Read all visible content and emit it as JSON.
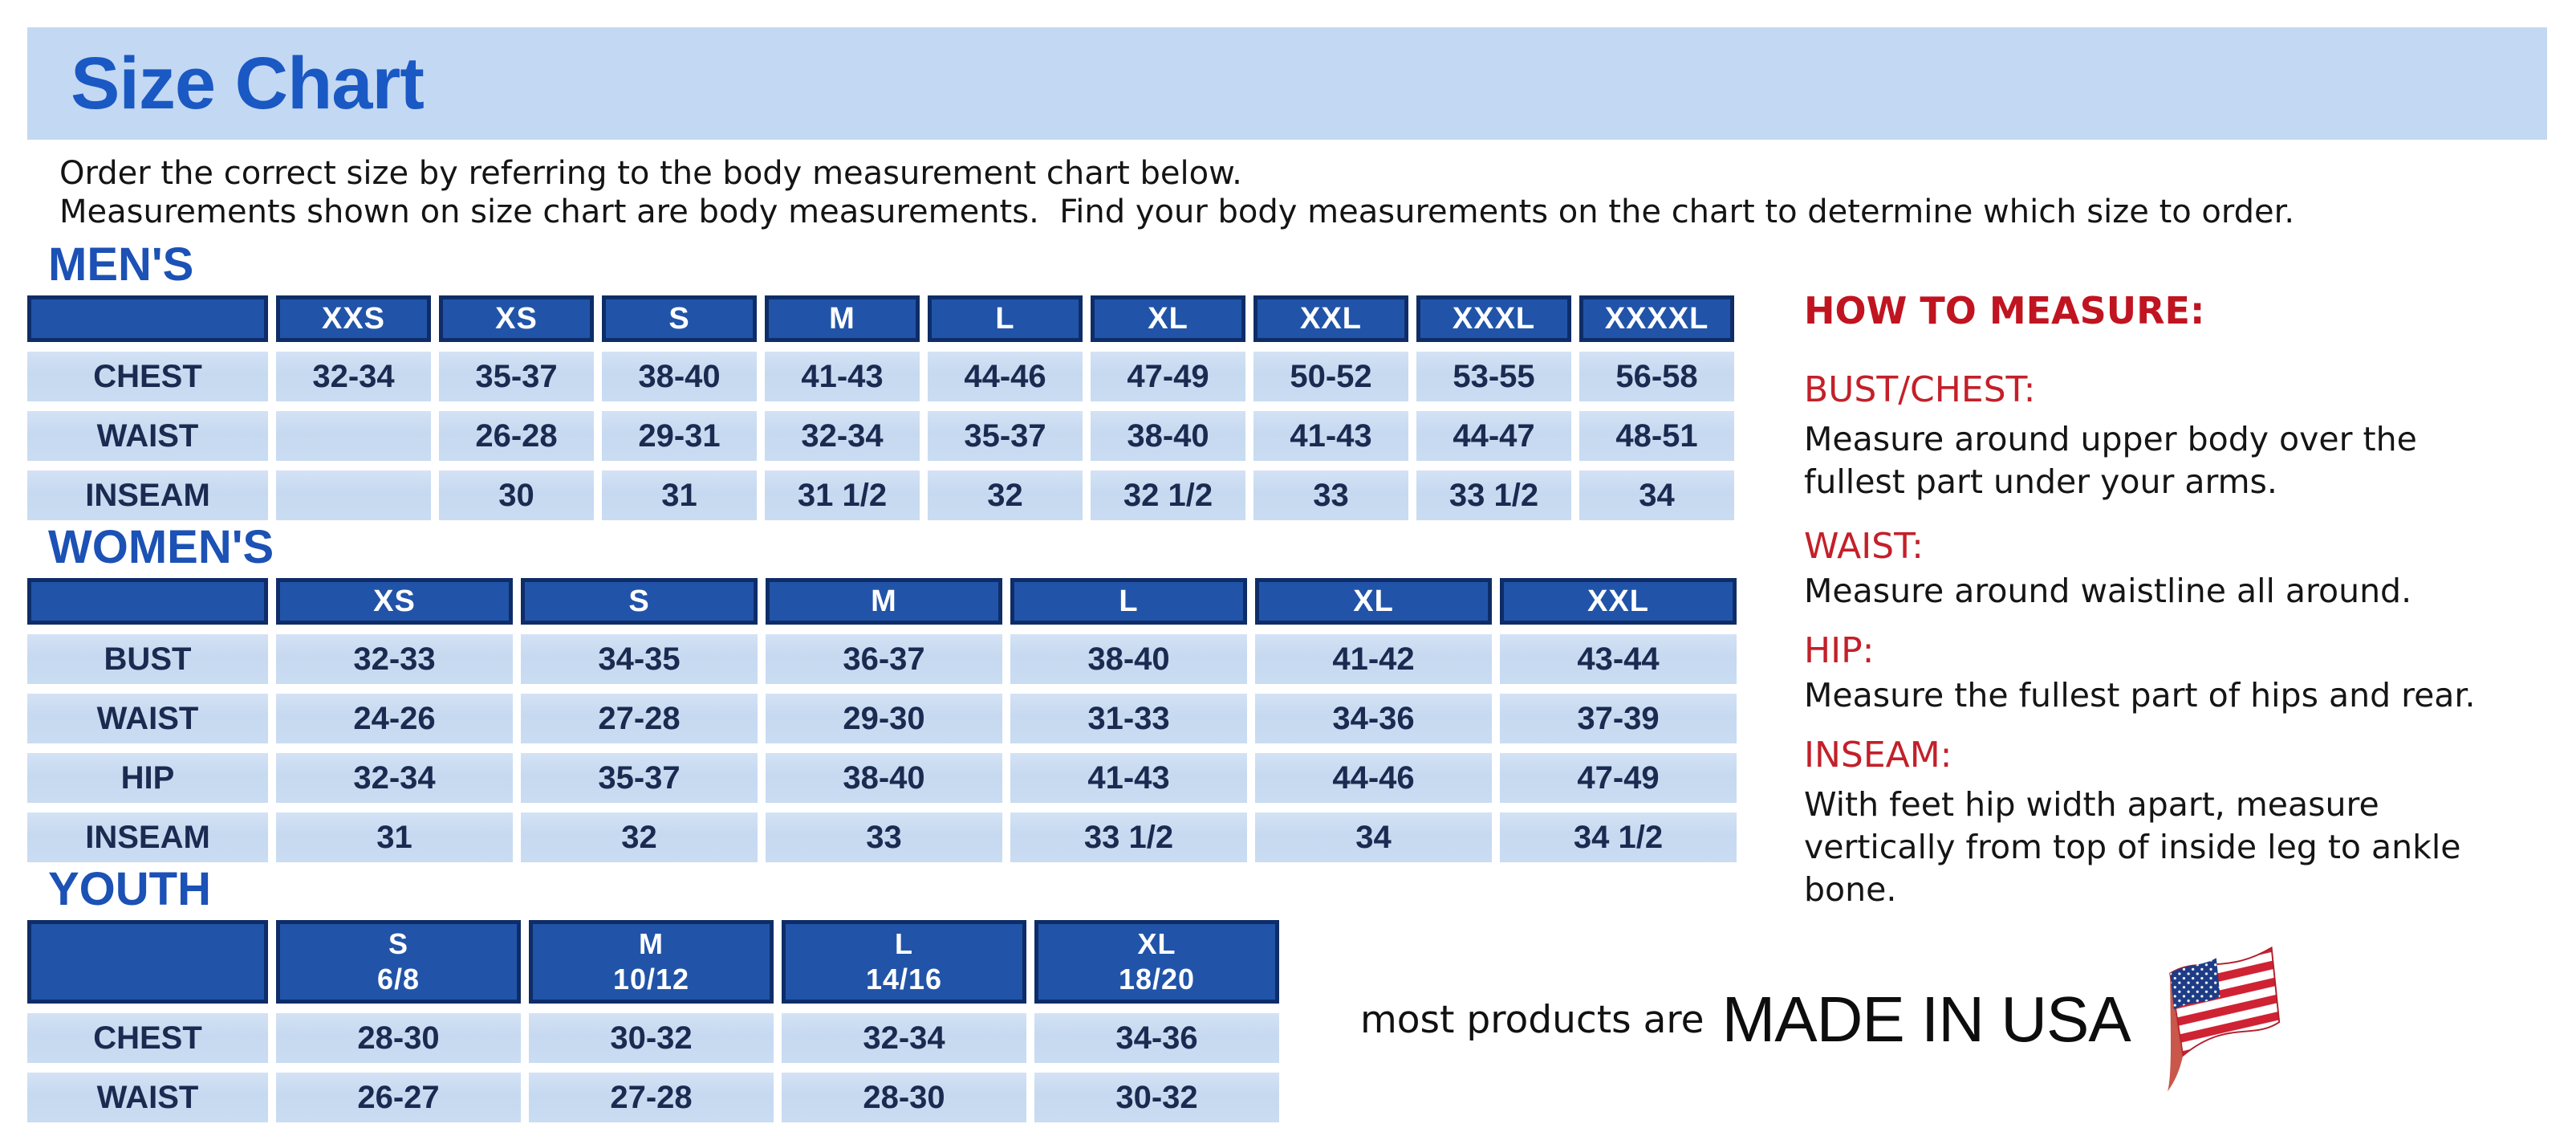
{
  "page": {
    "title": "Size Chart",
    "intro_line1": "Order the correct size by referring to the body measurement chart below.",
    "intro_line2": "Measurements shown on size chart are body measurements.  Find your body measurements on the chart to determine which size to order."
  },
  "tables": {
    "mens": {
      "section_label": "MEN'S",
      "columns": [
        "",
        "XXS",
        "XS",
        "S",
        "M",
        "L",
        "XL",
        "XXL",
        "XXXL",
        "XXXXL"
      ],
      "rows": [
        {
          "label": "CHEST",
          "values": [
            "32-34",
            "35-37",
            "38-40",
            "41-43",
            "44-46",
            "47-49",
            "50-52",
            "53-55",
            "56-58"
          ]
        },
        {
          "label": "WAIST",
          "values": [
            "",
            "26-28",
            "29-31",
            "32-34",
            "35-37",
            "38-40",
            "41-43",
            "44-47",
            "48-51"
          ]
        },
        {
          "label": "INSEAM",
          "values": [
            "",
            "30",
            "31",
            "31 1/2",
            "32",
            "32 1/2",
            "33",
            "33 1/2",
            "34"
          ]
        }
      ]
    },
    "womens": {
      "section_label": "WOMEN'S",
      "columns": [
        "",
        "XS",
        "S",
        "M",
        "L",
        "XL",
        "XXL"
      ],
      "rows": [
        {
          "label": "BUST",
          "values": [
            "32-33",
            "34-35",
            "36-37",
            "38-40",
            "41-42",
            "43-44"
          ]
        },
        {
          "label": "WAIST",
          "values": [
            "24-26",
            "27-28",
            "29-30",
            "31-33",
            "34-36",
            "37-39"
          ]
        },
        {
          "label": "HIP",
          "values": [
            "32-34",
            "35-37",
            "38-40",
            "41-43",
            "44-46",
            "47-49"
          ]
        },
        {
          "label": "INSEAM",
          "values": [
            "31",
            "32",
            "33",
            "33 1/2",
            "34",
            "34 1/2"
          ]
        }
      ]
    },
    "youth": {
      "section_label": "YOUTH",
      "columns": [
        "",
        "S\n6/8",
        "M\n10/12",
        "L\n14/16",
        "XL\n18/20"
      ],
      "rows": [
        {
          "label": "CHEST",
          "values": [
            "28-30",
            "30-32",
            "32-34",
            "34-36"
          ]
        },
        {
          "label": "WAIST",
          "values": [
            "26-27",
            "27-28",
            "28-30",
            "30-32"
          ]
        }
      ]
    }
  },
  "how_to_measure": {
    "title": "HOW TO MEASURE:",
    "items": [
      {
        "label": "BUST/CHEST:",
        "text": "Measure around upper body over the fullest part under your arms."
      },
      {
        "label": "WAIST:",
        "text": "Measure around waistline all around."
      },
      {
        "label": "HIP:",
        "text": "Measure the fullest part of hips and rear."
      },
      {
        "label": "INSEAM:",
        "text": "With feet hip width apart, measure vertically from top of inside leg to ankle bone."
      }
    ]
  },
  "footer": {
    "made_in_prefix": "most products are",
    "made_in_main": "MADE IN USA",
    "flag_icon": "usa-flag-icon"
  },
  "colors": {
    "banner_bg": "#c3d8f2",
    "title_blue": "#1a58c4",
    "section_blue": "#1c51b5",
    "table_header_bg": "#2154a8",
    "table_header_border": "#0e2d68",
    "cell_bg": "#c9dcf2",
    "cell_text": "#1b2a50",
    "accent_red": "#c01420",
    "flag_red": "#cf2233",
    "flag_blue": "#1e3c86"
  }
}
